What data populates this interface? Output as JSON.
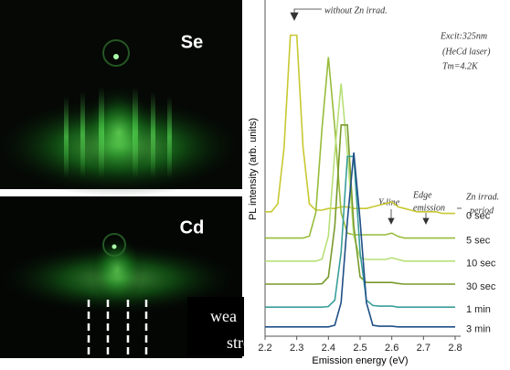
{
  "images": [
    {
      "label": "Se"
    },
    {
      "label": "Cd",
      "overlay": [
        "wea",
        "stre"
      ]
    }
  ],
  "chart_data": {
    "type": "line",
    "x_label": "Emission energy (eV)",
    "y_label": "PL intensity (arb. units)",
    "annotations": [
      "without Zn irrad.",
      "Excit:325nm",
      "(HeCd laser)",
      "Tm=4.2K",
      "Y-line",
      "Edge",
      "emission",
      "Zn irrad.",
      "period"
    ],
    "x": [
      2.2,
      2.22,
      2.24,
      2.26,
      2.28,
      2.3,
      2.32,
      2.34,
      2.36,
      2.38,
      2.4,
      2.42,
      2.44,
      2.46,
      2.48,
      2.5,
      2.52,
      2.54,
      2.56,
      2.58,
      2.6,
      2.62,
      2.64,
      2.66,
      2.68,
      2.7,
      2.72,
      2.74,
      2.76,
      2.78,
      2.8
    ],
    "xlim": [
      2.2,
      2.8
    ],
    "xticks": [
      2.2,
      2.3,
      2.4,
      2.5,
      2.6,
      2.7,
      2.8
    ],
    "ylim": [
      0,
      100
    ],
    "series": [
      {
        "name": "0 sec",
        "color": "#c8c832",
        "values": [
          37,
          37,
          39.4,
          56.5,
          90.7,
          90.7,
          56.5,
          39.4,
          37.5,
          37.5,
          38,
          38,
          38.5,
          38.5,
          38,
          38,
          38,
          38.5,
          39,
          39.5,
          40,
          38.5,
          38,
          37.5,
          37,
          37,
          37,
          37,
          36.5,
          36.5,
          36.5
        ]
      },
      {
        "name": "5 sec",
        "color": "#98bc3a",
        "values": [
          29,
          29,
          29,
          29,
          29,
          29,
          29,
          29.6,
          36.7,
          62.6,
          84,
          62.6,
          36.7,
          30.5,
          30,
          30,
          30,
          30,
          30,
          30,
          30.5,
          29.5,
          29,
          29,
          29,
          29,
          29,
          29,
          29,
          29,
          29
        ]
      },
      {
        "name": "10 sec",
        "color": "#b8e078",
        "values": [
          22,
          22,
          22,
          22,
          22,
          22,
          22,
          22,
          22,
          22.6,
          29.6,
          55,
          76,
          55,
          29.6,
          23,
          22.5,
          22.5,
          22.5,
          22.5,
          23,
          22.5,
          22,
          22,
          22,
          22,
          22,
          22,
          22,
          22,
          22
        ]
      },
      {
        "name": "30 sec",
        "color": "#789a2c",
        "values": [
          15,
          15,
          15,
          15,
          15,
          15,
          15,
          15,
          15,
          15.1,
          17.2,
          32.6,
          63.4,
          63.4,
          32.6,
          17.2,
          15.5,
          15.5,
          15.5,
          15.5,
          15.5,
          15.2,
          15,
          15,
          15,
          15,
          15,
          15,
          15,
          15,
          15
        ]
      },
      {
        "name": "1 min",
        "color": "#3a9e9a",
        "values": [
          8,
          8,
          8,
          8,
          8,
          8,
          8,
          8,
          8,
          8,
          8.2,
          10.1,
          24.6,
          53.8,
          53.8,
          24.6,
          10.1,
          8.5,
          8.3,
          8.3,
          8.3,
          8,
          8,
          8,
          8,
          8,
          8,
          8,
          8,
          8,
          8
        ]
      },
      {
        "name": "3 min",
        "color": "#1f4f86",
        "values": [
          2,
          2,
          2,
          2,
          2,
          2,
          2,
          2,
          2,
          2,
          2,
          2.5,
          9.4,
          34.3,
          55,
          34.3,
          9.4,
          2.5,
          2.2,
          2.2,
          2.2,
          2,
          2,
          2,
          2,
          2,
          2,
          2,
          2,
          2,
          2
        ]
      }
    ]
  }
}
